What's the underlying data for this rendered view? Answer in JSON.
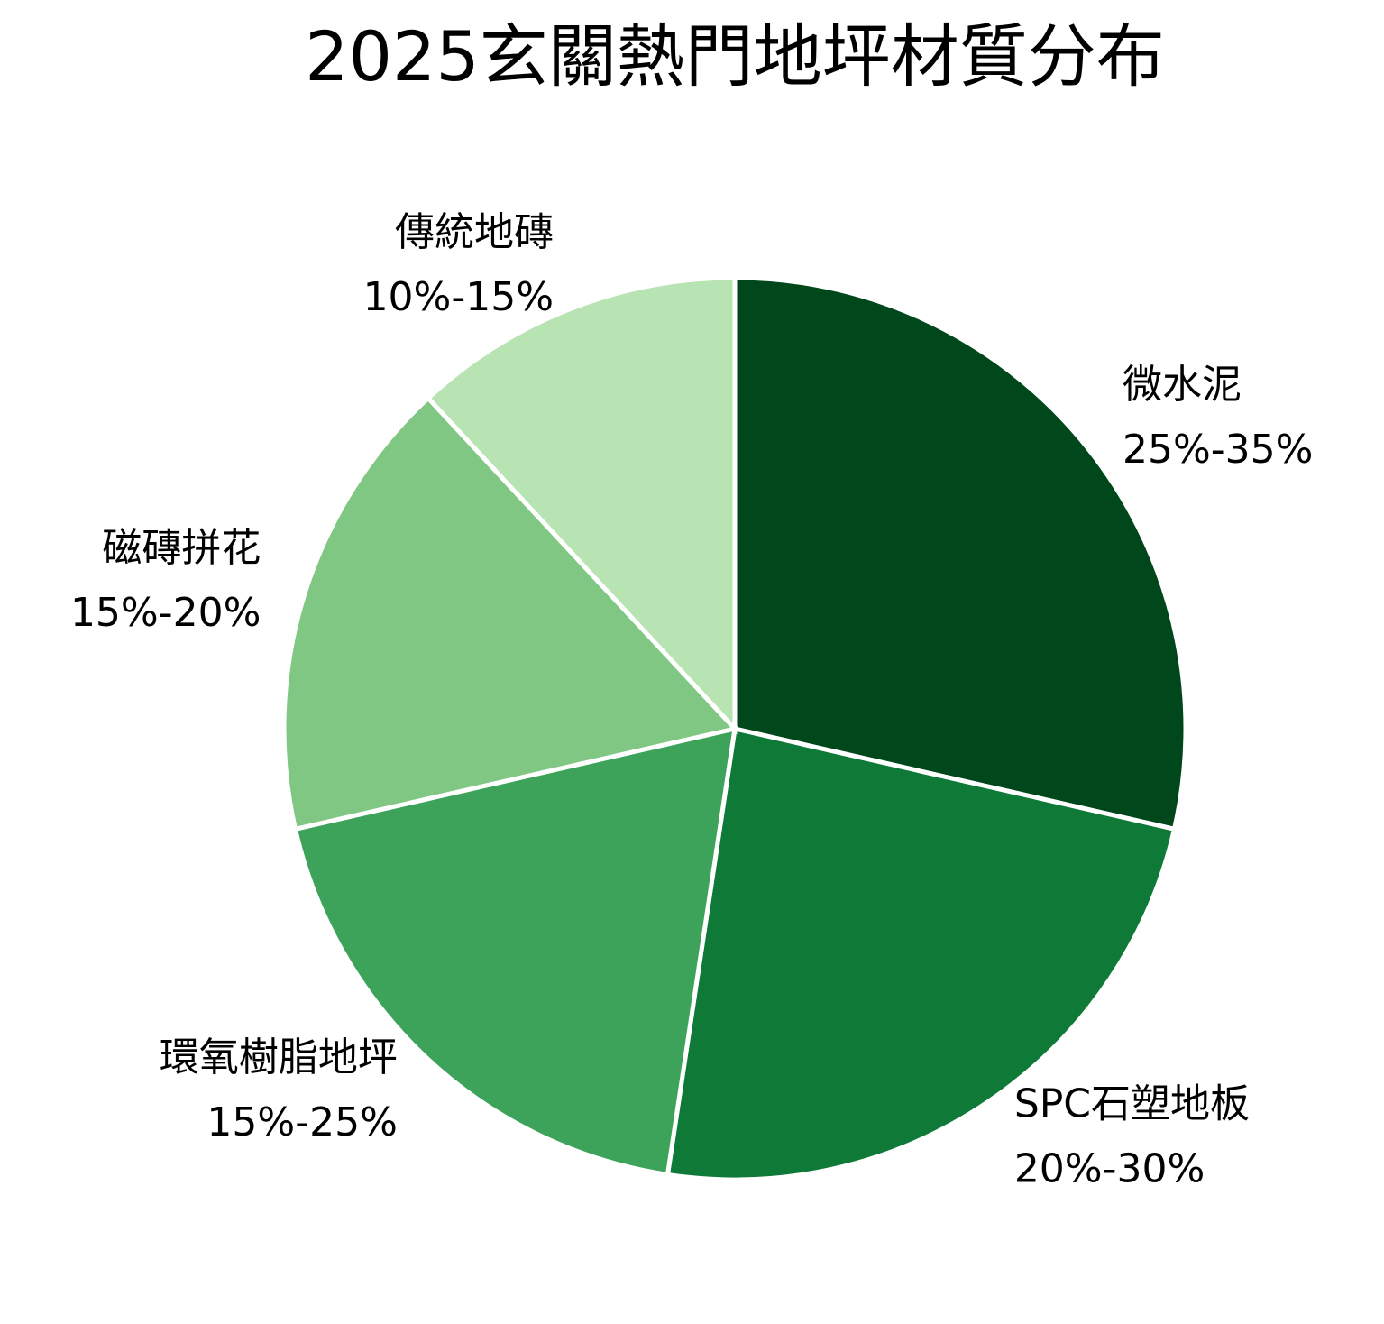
{
  "chart_data": {
    "type": "pie",
    "title": "2025玄關熱門地坪材質分布",
    "categories": [
      "微水泥",
      "SPC石塑地板",
      "環氧樹脂地坪",
      "磁磚拼花",
      "傳統地磚"
    ],
    "values": [
      30,
      25,
      20,
      17.5,
      12.5
    ],
    "value_labels": [
      "25%-35%",
      "20%-30%",
      "15%-25%",
      "15%-20%",
      "10%-15%"
    ],
    "colors": [
      "#00471b",
      "#0f7a37",
      "#3da35a",
      "#80c783",
      "#b8e3b3"
    ]
  }
}
